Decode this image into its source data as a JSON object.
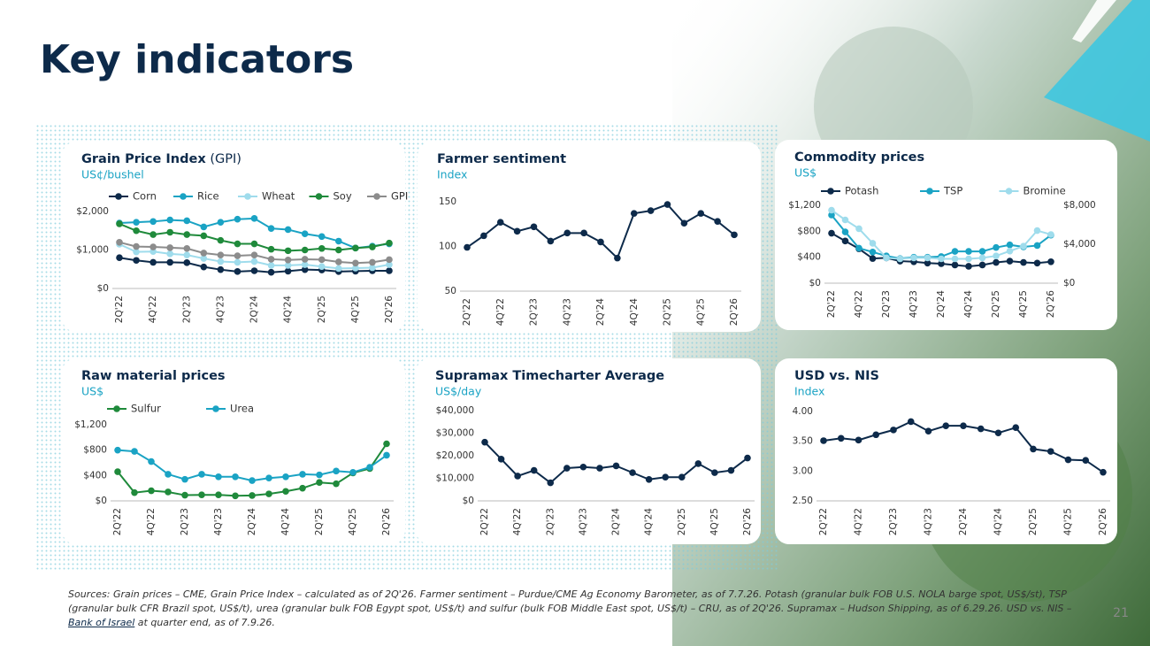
{
  "title": "Key indicators",
  "charts": [
    {
      "chart_data": {
        "type": "line",
        "title": "Grain Price Index",
        "title_suffix": "(GPI)",
        "subtitle": "US¢/bushel",
        "legend": "top",
        "categories": [
          "2Q'22",
          null,
          "4Q'22",
          null,
          "2Q'23",
          null,
          "4Q'23",
          null,
          "2Q'24",
          null,
          "4Q'24",
          null,
          "2Q'25",
          null,
          "4Q'25",
          null,
          "2Q'26"
        ],
        "ylim": [
          0,
          2000
        ],
        "yticks": [
          {
            "value": 0,
            "label": "$0"
          },
          {
            "value": 1000,
            "label": "$1,000"
          },
          {
            "value": 2000,
            "label": "$2,000"
          }
        ],
        "series": [
          {
            "name": "Corn",
            "color": "#0d2a4a",
            "values": [
              800,
              730,
              680,
              680,
              670,
              560,
              490,
              440,
              460,
              420,
              450,
              490,
              480,
              440,
              450,
              460,
              460
            ]
          },
          {
            "name": "Rice",
            "color": "#1aa3c4",
            "values": [
              1700,
              1720,
              1740,
              1780,
              1760,
              1600,
              1720,
              1800,
              1820,
              1560,
              1530,
              1420,
              1350,
              1230,
              1050,
              1100,
              1160
            ]
          },
          {
            "name": "Wheat",
            "color": "#9fdcec",
            "values": [
              1150,
              950,
              960,
              900,
              870,
              780,
              700,
              680,
              700,
              600,
              600,
              620,
              570,
              520,
              530,
              540,
              620
            ]
          },
          {
            "name": "Soy",
            "color": "#1f8a3b",
            "values": [
              1680,
              1500,
              1400,
              1460,
              1400,
              1370,
              1250,
              1160,
              1160,
              1020,
              980,
              1000,
              1040,
              1000,
              1050,
              1080,
              1180
            ]
          },
          {
            "name": "GPI",
            "color": "#8c8c8c",
            "values": [
              1200,
              1090,
              1080,
              1060,
              1040,
              920,
              870,
              850,
              870,
              760,
              740,
              760,
              750,
              690,
              660,
              680,
              750
            ]
          }
        ]
      }
    },
    {
      "chart_data": {
        "type": "line",
        "title": "Farmer sentiment",
        "subtitle": "Index",
        "categories": [
          "2Q'22",
          null,
          "4Q'22",
          null,
          "2Q'23",
          null,
          "4Q'23",
          null,
          "2Q'24",
          null,
          "4Q'24",
          null,
          "2Q'25",
          null,
          "4Q'25",
          null,
          "2Q'26"
        ],
        "ylim": [
          50,
          150
        ],
        "yticks": [
          50,
          100,
          150
        ],
        "series": [
          {
            "name": "Farmer sentiment",
            "color": "#0d2a4a",
            "values": [
              99,
              112,
              127,
              117,
              122,
              106,
              115,
              115,
              105,
              87,
              137,
              140,
              147,
              126,
              137,
              128,
              113
            ]
          }
        ]
      }
    },
    {
      "chart_data": {
        "type": "line",
        "title": "Commodity prices",
        "subtitle": "US$",
        "legend": "top",
        "categories": [
          "2Q'22",
          null,
          "4Q'22",
          null,
          "2Q'23",
          null,
          "4Q'23",
          null,
          "2Q'24",
          null,
          "4Q'24",
          null,
          "2Q'25",
          null,
          "4Q'25",
          null,
          "2Q'26"
        ],
        "ylim": [
          0,
          1200
        ],
        "yticks": [
          {
            "value": 0,
            "label": "$0"
          },
          {
            "value": 400,
            "label": "$400"
          },
          {
            "value": 800,
            "label": "$800"
          },
          {
            "value": 1200,
            "label": "$1,200"
          }
        ],
        "y2lim": [
          0,
          8000
        ],
        "y2ticks": [
          {
            "value": 0,
            "label": "$0"
          },
          {
            "value": 4000,
            "label": "$4,000"
          },
          {
            "value": 8000,
            "label": "$8,000"
          }
        ],
        "series": [
          {
            "name": "Potash",
            "color": "#0d2a4a",
            "values": [
              770,
              650,
              530,
              380,
              390,
              340,
              330,
              310,
              300,
              280,
              260,
              280,
              320,
              340,
              320,
              310,
              330
            ]
          },
          {
            "name": "TSP",
            "color": "#1aa3c4",
            "values": [
              1050,
              790,
              540,
              480,
              420,
              380,
              400,
              400,
              410,
              490,
              490,
              490,
              550,
              590,
              560,
              580,
              740
            ]
          },
          {
            "name": "Bromine",
            "color": "#9fdcec",
            "axis": "y2",
            "values": [
              7500,
              6500,
              5600,
              4100,
              2600,
              2500,
              2600,
              2600,
              2500,
              2500,
              2500,
              2600,
              2800,
              3300,
              3800,
              5400,
              5000
            ]
          }
        ]
      }
    },
    {
      "chart_data": {
        "type": "line",
        "title": "Raw material prices",
        "subtitle": "US$",
        "legend": "top",
        "categories": [
          "2Q'22",
          null,
          "4Q'22",
          null,
          "2Q'23",
          null,
          "4Q'23",
          null,
          "2Q'24",
          null,
          "4Q'24",
          null,
          "2Q'25",
          null,
          "4Q'25",
          null,
          "2Q'26"
        ],
        "ylim": [
          0,
          1200
        ],
        "yticks": [
          {
            "value": 0,
            "label": "$0"
          },
          {
            "value": 400,
            "label": "$400"
          },
          {
            "value": 800,
            "label": "$800"
          },
          {
            "value": 1200,
            "label": "$1,200"
          }
        ],
        "series": [
          {
            "name": "Sulfur",
            "color": "#1f8a3b",
            "values": [
              460,
              130,
              160,
              140,
              90,
              95,
              95,
              80,
              85,
              110,
              150,
              200,
              290,
              270,
              440,
              510,
              900
            ]
          },
          {
            "name": "Urea",
            "color": "#1aa3c4",
            "values": [
              800,
              780,
              620,
              420,
              340,
              420,
              380,
              380,
              320,
              360,
              380,
              420,
              410,
              470,
              450,
              530,
              720
            ]
          }
        ]
      }
    },
    {
      "chart_data": {
        "type": "line",
        "title": "Supramax Timecharter Average",
        "subtitle": "US$/day",
        "categories": [
          "2Q'22",
          null,
          "4Q'22",
          null,
          "2Q'23",
          null,
          "4Q'23",
          null,
          "2Q'24",
          null,
          "4Q'24",
          null,
          "2Q'25",
          null,
          "4Q'25",
          null,
          "2Q'26"
        ],
        "ylim": [
          0,
          40000
        ],
        "yticks": [
          {
            "value": 0,
            "label": "$0"
          },
          {
            "value": 10000,
            "label": "$10,000"
          },
          {
            "value": 20000,
            "label": "$20,000"
          },
          {
            "value": 30000,
            "label": "$30,000"
          },
          {
            "value": 40000,
            "label": "$40,000"
          }
        ],
        "series": [
          {
            "name": "Supramax",
            "color": "#0d2a4a",
            "values": [
              26000,
              18500,
              11000,
              13500,
              8000,
              14500,
              15000,
              14500,
              15500,
              12500,
              9500,
              10500,
              10500,
              16500,
              12500,
              13500,
              19000
            ]
          }
        ]
      }
    },
    {
      "chart_data": {
        "type": "line",
        "title": "USD vs. NIS",
        "subtitle": "Index",
        "categories": [
          "2Q'22",
          null,
          "4Q'22",
          null,
          "2Q'23",
          null,
          "4Q'23",
          null,
          "2Q'24",
          null,
          "4Q'24",
          null,
          "2Q'25",
          null,
          "4Q'25",
          null,
          "2Q'26"
        ],
        "ylim": [
          2.5,
          4.0
        ],
        "yticks": [
          {
            "value": 2.5,
            "label": "2.50"
          },
          {
            "value": 3.0,
            "label": "3.00"
          },
          {
            "value": 3.5,
            "label": "3.50"
          },
          {
            "value": 4.0,
            "label": "4.00"
          }
        ],
        "series": [
          {
            "name": "USD vs. NIS",
            "color": "#0d2a4a",
            "values": [
              3.51,
              3.55,
              3.52,
              3.61,
              3.69,
              3.83,
              3.67,
              3.76,
              3.76,
              3.71,
              3.64,
              3.73,
              3.37,
              3.33,
              3.19,
              3.18,
              2.98
            ]
          }
        ]
      }
    }
  ],
  "sources": {
    "text": "Sources: Grain prices – CME, Grain Price Index – calculated as of 2Q'26. Farmer sentiment – Purdue/CME Ag Economy Barometer, as of 7.7.26. Potash (granular bulk FOB U.S. NOLA barge spot, US$/st), TSP (granular bulk CFR Brazil spot, US$/t), urea (granular bulk FOB Egypt spot, US$/t) and sulfur (bulk FOB Middle East spot, US$/t) – CRU, as of 2Q'26. Supramax – Hudson Shipping, as of 6.29.26. USD vs. NIS –",
    "link": "Bank of Israel",
    "text_end": "at quarter end, as of 7.9.26."
  },
  "page_number": "21"
}
